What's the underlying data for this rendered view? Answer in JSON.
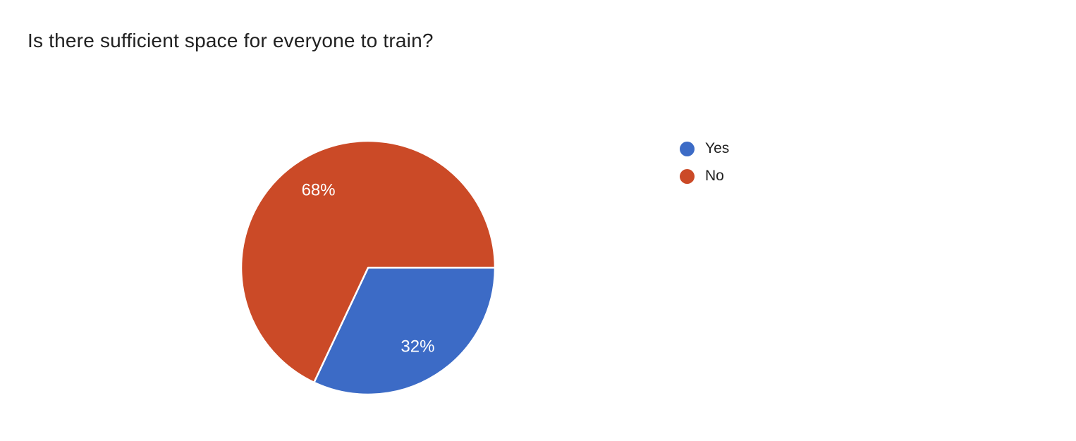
{
  "page": {
    "background_color": "#ffffff",
    "title_text_color": "#212121"
  },
  "chart_data": {
    "type": "pie",
    "title": "Is there sufficient space for everyone to train?",
    "categories": [
      "Yes",
      "No"
    ],
    "values": [
      32,
      68
    ],
    "total": 100,
    "units": "percent",
    "value_labels": [
      "32%",
      "68%"
    ],
    "colors": [
      "#3C6BC6",
      "#CB4A27"
    ],
    "slice_label_color": "#ffffff",
    "slice_separator_color": "#ffffff",
    "start_angle_deg": 0,
    "direction": "clockwise",
    "legend_position": "right",
    "legend": {
      "entries": [
        {
          "label": "Yes",
          "color": "#3C6BC6"
        },
        {
          "label": "No",
          "color": "#CB4A27"
        }
      ]
    }
  }
}
